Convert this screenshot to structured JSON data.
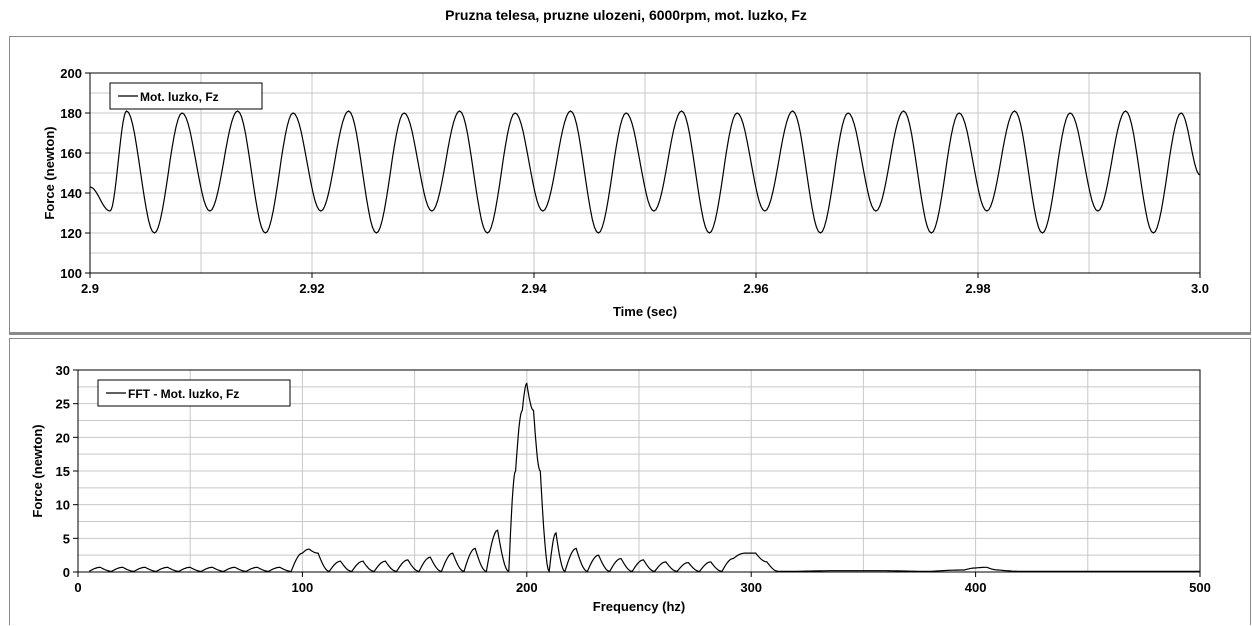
{
  "page_title": "Pruzna telesa, pruzne ulozeni, 6000rpm, mot. luzko, Fz",
  "colors": {
    "line": "#000000",
    "grid": "#c8c8c8",
    "plot_border": "#000000",
    "legend_border": "#000000"
  },
  "chart_data": [
    {
      "type": "line",
      "title": "",
      "xlabel": "Time (sec)",
      "ylabel": "Force (newton)",
      "xlim": [
        2.9,
        3.0
      ],
      "ylim": [
        100,
        200
      ],
      "xticks": [
        2.9,
        2.92,
        2.94,
        2.96,
        2.98,
        3.0
      ],
      "xtick_labels": [
        "2.9",
        "2.92",
        "2.94",
        "2.96",
        "2.98",
        "3.0"
      ],
      "yticks": [
        100,
        120,
        140,
        160,
        180,
        200
      ],
      "ytick_labels": [
        "100",
        "120",
        "140",
        "160",
        "180",
        "200"
      ],
      "grid": true,
      "legend_position": "top-left",
      "series": [
        {
          "name": "Mot. luzko, Fz",
          "x": [
            2.9,
            2.9018,
            2.9033,
            2.9058,
            2.9083,
            2.9108,
            2.9133,
            2.9158,
            2.9183,
            2.9208,
            2.9233,
            2.9258,
            2.9283,
            2.9308,
            2.9333,
            2.9358,
            2.9383,
            2.9408,
            2.9433,
            2.9458,
            2.9483,
            2.9508,
            2.9533,
            2.9558,
            2.9583,
            2.9608,
            2.9633,
            2.9658,
            2.9683,
            2.9708,
            2.9733,
            2.9758,
            2.9783,
            2.9808,
            2.9833,
            2.9858,
            2.9883,
            2.9908,
            2.9933,
            2.9958,
            2.9983,
            3.0
          ],
          "y": [
            143,
            131,
            181,
            120,
            180,
            131,
            181,
            120,
            180,
            131,
            181,
            120,
            180,
            131,
            181,
            120,
            180,
            131,
            181,
            120,
            180,
            131,
            181,
            120,
            180,
            131,
            181,
            120,
            180,
            131,
            181,
            120,
            180,
            131,
            181,
            120,
            180,
            131,
            181,
            120,
            180,
            149
          ]
        }
      ]
    },
    {
      "type": "line",
      "title": "",
      "xlabel": "Frequency (hz)",
      "ylabel": "Force (newton)",
      "xlim": [
        0,
        500
      ],
      "ylim": [
        0,
        30
      ],
      "xticks": [
        0,
        100,
        200,
        300,
        400,
        500
      ],
      "xtick_labels": [
        "0",
        "100",
        "200",
        "300",
        "400",
        "500"
      ],
      "yticks": [
        0,
        5,
        10,
        15,
        20,
        25,
        30
      ],
      "ytick_labels": [
        "0",
        "5",
        "10",
        "15",
        "20",
        "25",
        "30"
      ],
      "grid": true,
      "legend_position": "top-left",
      "series": [
        {
          "name": "FFT - Mot. luzko, Fz",
          "x": [
            5,
            10,
            15,
            20,
            25,
            30,
            35,
            40,
            45,
            50,
            55,
            60,
            65,
            70,
            75,
            80,
            85,
            90,
            95,
            100,
            103,
            107,
            112,
            117,
            122,
            127,
            132,
            137,
            142,
            147,
            152,
            157,
            162,
            167,
            172,
            177,
            182,
            187,
            192,
            195,
            198,
            200,
            203,
            206,
            210,
            213,
            217,
            222,
            227,
            232,
            237,
            242,
            247,
            252,
            257,
            262,
            267,
            272,
            277,
            282,
            287,
            292,
            297,
            302,
            307,
            312,
            320,
            340,
            360,
            380,
            395,
            400,
            405,
            410,
            420,
            440,
            460,
            480,
            500
          ],
          "y": [
            0.1,
            0.7,
            0.1,
            0.7,
            0.1,
            0.7,
            0.1,
            0.7,
            0.1,
            0.7,
            0.1,
            0.7,
            0.1,
            0.7,
            0.1,
            0.7,
            0.1,
            0.7,
            0.1,
            2.8,
            3.4,
            2.8,
            0.1,
            1.6,
            0.1,
            1.6,
            0.1,
            1.6,
            0.1,
            1.8,
            0.1,
            2.2,
            0.1,
            2.8,
            0.1,
            3.5,
            0.1,
            6.2,
            0.1,
            15,
            24,
            28,
            24,
            15,
            0.1,
            5.8,
            0.1,
            3.5,
            0.1,
            2.5,
            0.1,
            2.0,
            0.1,
            1.8,
            0.1,
            1.5,
            0.1,
            1.4,
            0.1,
            1.5,
            0.1,
            2.0,
            2.8,
            2.8,
            1.5,
            0.1,
            0.1,
            0.2,
            0.2,
            0.1,
            0.3,
            0.6,
            0.7,
            0.3,
            0.1,
            0.1,
            0.1,
            0.1,
            0.1
          ]
        }
      ]
    }
  ]
}
